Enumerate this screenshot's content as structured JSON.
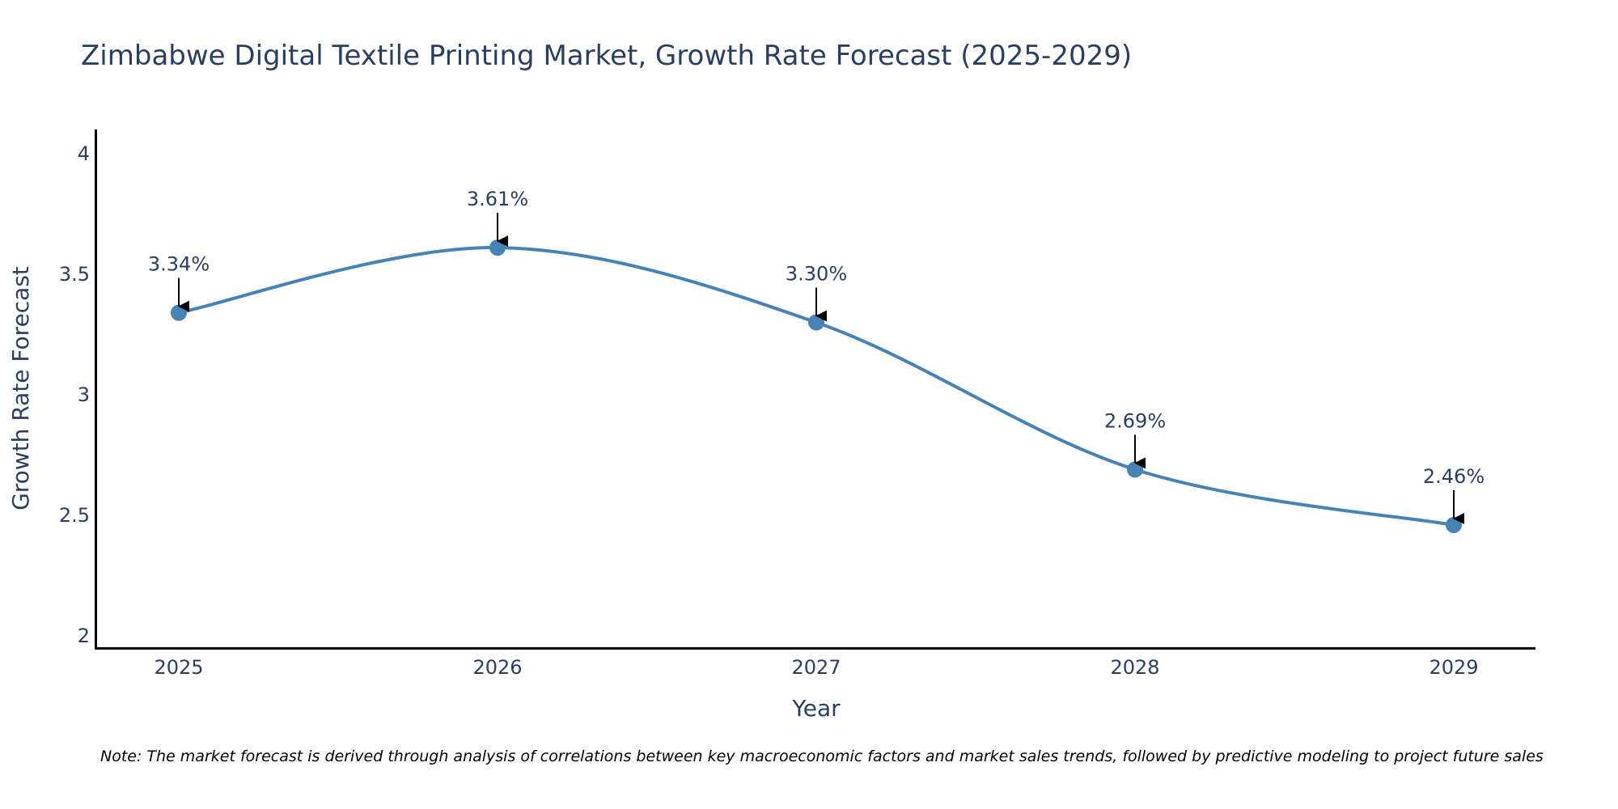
{
  "chart_data": {
    "type": "line",
    "title": "Zimbabwe Digital Textile Printing Market, Growth Rate Forecast (2025-2029)",
    "xlabel": "Year",
    "ylabel": "Growth Rate Forecast",
    "categories": [
      "2025",
      "2026",
      "2027",
      "2028",
      "2029"
    ],
    "series": [
      {
        "name": "Growth Rate Forecast",
        "values": [
          3.34,
          3.61,
          3.3,
          2.69,
          2.46
        ],
        "labels": [
          "3.34%",
          "3.61%",
          "3.30%",
          "2.69%",
          "2.46%"
        ]
      }
    ],
    "ylim": [
      1.95,
      4.1
    ],
    "y_ticks": [
      2,
      2.5,
      3,
      3.5,
      4
    ],
    "y_tick_labels": [
      "2",
      "2.5",
      "3",
      "3.5",
      "4"
    ],
    "line_shape": "spline",
    "grid": false,
    "colors": {
      "line": "#4682b4",
      "marker": "#4682b4",
      "arrow": "#000000",
      "axis": "#000000",
      "text": "#2a3f5f"
    },
    "note": "Note: The market forecast is derived through analysis of correlations between key macroeconomic factors and market sales trends, followed by predictive modeling to project future sales"
  }
}
